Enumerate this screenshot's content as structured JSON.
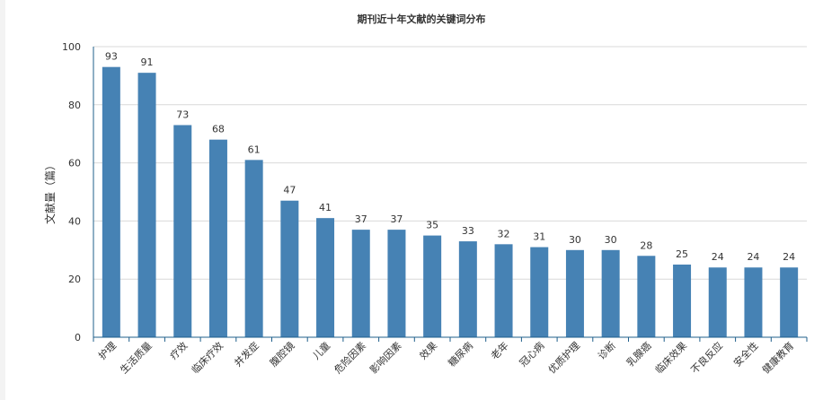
{
  "chart_data": {
    "type": "bar",
    "title": "期刊近十年文献的关键词分布",
    "xlabel": "",
    "ylabel": "文献量（篇）",
    "ylim": [
      0,
      100
    ],
    "yticks": [
      0,
      20,
      40,
      60,
      80,
      100
    ],
    "grid": true,
    "legend": "none",
    "bar_color": "#4682b4",
    "categories": [
      "护理",
      "生活质量",
      "疗效",
      "临床疗效",
      "并发症",
      "腹腔镜",
      "儿童",
      "危险因素",
      "影响因素",
      "效果",
      "糖尿病",
      "老年",
      "冠心病",
      "优质护理",
      "诊断",
      "乳腺癌",
      "临床效果",
      "不良反应",
      "安全性",
      "健康教育"
    ],
    "values": [
      93,
      91,
      73,
      68,
      61,
      47,
      41,
      37,
      37,
      35,
      33,
      32,
      31,
      30,
      30,
      28,
      25,
      24,
      24,
      24
    ]
  }
}
